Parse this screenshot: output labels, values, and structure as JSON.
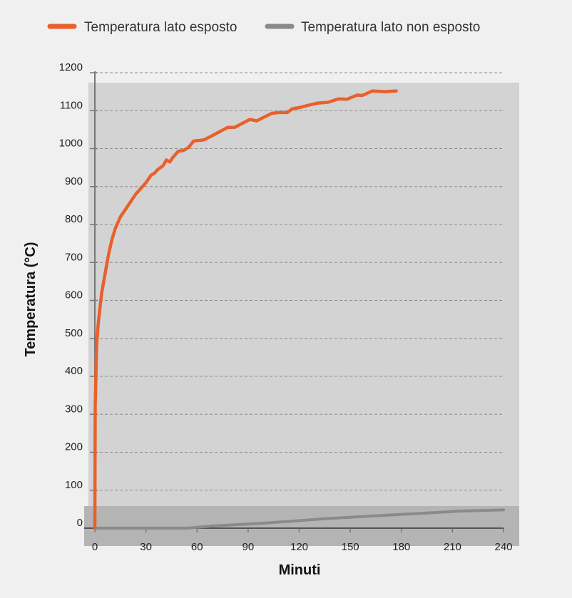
{
  "chart_data": {
    "type": "line",
    "title": "",
    "xlabel": "Minuti",
    "ylabel": "Temperatura (°C)",
    "xlim": [
      0,
      240
    ],
    "ylim": [
      0,
      1200
    ],
    "x_ticks": [
      0,
      30,
      60,
      90,
      120,
      150,
      180,
      210,
      240
    ],
    "y_ticks": [
      0,
      100,
      200,
      300,
      400,
      500,
      600,
      700,
      800,
      900,
      1000,
      1100,
      1200
    ],
    "grid": "horizontal dashed",
    "legend_position": "top",
    "series": [
      {
        "name": "Temperatura lato esposto",
        "color": "#e8602c",
        "points": [
          [
            0,
            0
          ],
          [
            0.2,
            320
          ],
          [
            1,
            480
          ],
          [
            2,
            540
          ],
          [
            4,
            620
          ],
          [
            6,
            670
          ],
          [
            8,
            720
          ],
          [
            10,
            760
          ],
          [
            12,
            790
          ],
          [
            15,
            820
          ],
          [
            18,
            840
          ],
          [
            21,
            860
          ],
          [
            24,
            880
          ],
          [
            27,
            895
          ],
          [
            30,
            910
          ],
          [
            33,
            930
          ],
          [
            35,
            935
          ],
          [
            37,
            945
          ],
          [
            40,
            955
          ],
          [
            42,
            970
          ],
          [
            44,
            965
          ],
          [
            46,
            978
          ],
          [
            49,
            993
          ],
          [
            52,
            995
          ],
          [
            55,
            1003
          ],
          [
            58,
            1020
          ],
          [
            64,
            1023
          ],
          [
            68,
            1032
          ],
          [
            73,
            1044
          ],
          [
            78,
            1056
          ],
          [
            82,
            1056
          ],
          [
            86,
            1065
          ],
          [
            91,
            1077
          ],
          [
            95,
            1073
          ],
          [
            99,
            1082
          ],
          [
            104,
            1093
          ],
          [
            108,
            1095
          ],
          [
            113,
            1095
          ],
          [
            116,
            1105
          ],
          [
            120,
            1108
          ],
          [
            126,
            1115
          ],
          [
            131,
            1120
          ],
          [
            137,
            1122
          ],
          [
            143,
            1131
          ],
          [
            148,
            1130
          ],
          [
            154,
            1141
          ],
          [
            157,
            1140
          ],
          [
            163,
            1152
          ],
          [
            170,
            1150
          ],
          [
            177,
            1152
          ]
        ]
      },
      {
        "name": "Temperatura lato non esposto",
        "color": "#8a8a8a",
        "points": [
          [
            0,
            0
          ],
          [
            30,
            0
          ],
          [
            54,
            0
          ],
          [
            70,
            6
          ],
          [
            95,
            12
          ],
          [
            115,
            18
          ],
          [
            135,
            25
          ],
          [
            155,
            30
          ],
          [
            175,
            35
          ],
          [
            195,
            40
          ],
          [
            215,
            45
          ],
          [
            240,
            48
          ]
        ]
      }
    ]
  }
}
